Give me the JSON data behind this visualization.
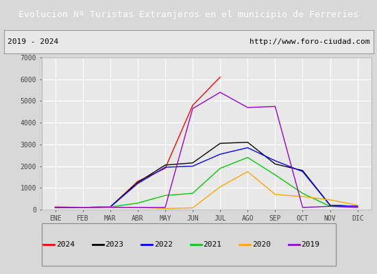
{
  "title": "Evolucion Nº Turistas Extranjeros en el municipio de Ferreries",
  "subtitle_left": "2019 - 2024",
  "subtitle_right": "http://www.foro-ciudad.com",
  "title_bg_color": "#4d7cc7",
  "title_text_color": "#ffffff",
  "months": [
    "ENE",
    "FEB",
    "MAR",
    "ABR",
    "MAY",
    "JUN",
    "JUL",
    "AGO",
    "SEP",
    "OCT",
    "NOV",
    "DIC"
  ],
  "ylim": [
    0,
    7000
  ],
  "yticks": [
    0,
    1000,
    2000,
    3000,
    4000,
    5000,
    6000,
    7000
  ],
  "series": {
    "2024": {
      "color": "#ff0000",
      "data": [
        100,
        100,
        120,
        1300,
        1900,
        4800,
        6100,
        null,
        null,
        null,
        null,
        null
      ]
    },
    "2023": {
      "color": "#000000",
      "data": [
        100,
        100,
        120,
        1250,
        2050,
        2150,
        3050,
        3100,
        2100,
        1800,
        200,
        150
      ]
    },
    "2022": {
      "color": "#0000ff",
      "data": [
        100,
        100,
        120,
        1200,
        1950,
        2000,
        2550,
        2850,
        2250,
        1750,
        200,
        150
      ]
    },
    "2021": {
      "color": "#00cc00",
      "data": [
        100,
        100,
        120,
        300,
        650,
        750,
        1900,
        2400,
        1600,
        750,
        150,
        120
      ]
    },
    "2020": {
      "color": "#ffa500",
      "data": [
        150,
        100,
        120,
        100,
        50,
        80,
        1050,
        1750,
        700,
        600,
        450,
        200
      ]
    },
    "2019": {
      "color": "#9900cc",
      "data": [
        100,
        100,
        100,
        100,
        100,
        4650,
        5400,
        4700,
        4750,
        100,
        150,
        100
      ]
    }
  },
  "legend_order": [
    "2024",
    "2023",
    "2022",
    "2021",
    "2020",
    "2019"
  ],
  "plot_bg_color": "#e8e8e8",
  "grid_color": "#ffffff",
  "fig_bg_color": "#d8d8d8",
  "border_color": "#aaaaaa",
  "subtitle_bg": "#e8e8e8"
}
